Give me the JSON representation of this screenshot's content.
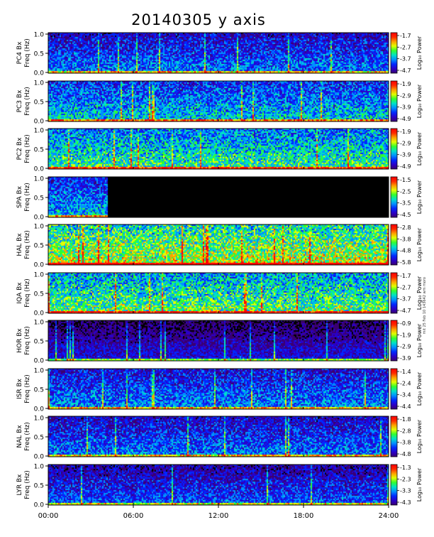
{
  "title": "20140305 y axis",
  "note": "mit 25 Feb 10 143642 wm moro",
  "colormap": [
    "#000000",
    "#3a0070",
    "#2a00c8",
    "#0028ff",
    "#0090ff",
    "#00e0c8",
    "#30ff30",
    "#e0ff00",
    "#ffa000",
    "#ff2800",
    "#ff0000"
  ],
  "chart_data": {
    "type": "heatmap",
    "x_tick_labels": [
      "00:00",
      "06:00",
      "12:00",
      "18:00",
      "24:00"
    ],
    "x_ticks_hours": [
      0,
      6,
      12,
      18,
      24
    ],
    "xlim_hours": [
      0,
      24
    ],
    "y_tick_labels": [
      "0.0",
      "0.5",
      "1.0"
    ],
    "ylim": [
      0,
      1.0
    ],
    "colorbar_label": "Log₁₀ Power",
    "panels": [
      {
        "station": "PC4",
        "label": "PC4 Bx",
        "freq_label": "Freq (Hz)",
        "cbar_ticks": [
          "-1.7",
          "-2.7",
          "-3.7",
          "-4.7"
        ],
        "intensity": 0.22,
        "noise": 0.3
      },
      {
        "station": "PC3",
        "label": "PC3 Bx",
        "freq_label": "Freq (Hz)",
        "cbar_ticks": [
          "-1.9",
          "-2.9",
          "-3.9",
          "-4.9"
        ],
        "intensity": 0.3,
        "noise": 0.32
      },
      {
        "station": "PC2",
        "label": "PC2 Bx",
        "freq_label": "Freq (Hz)",
        "cbar_ticks": [
          "-1.9",
          "-2.9",
          "-3.9",
          "-4.9"
        ],
        "intensity": 0.38,
        "noise": 0.34
      },
      {
        "station": "SPA",
        "label": "SPA Bx",
        "freq_label": "Freq (Hz)",
        "cbar_ticks": [
          "-1.5",
          "-2.5",
          "-3.5",
          "-4.5"
        ],
        "intensity": 0.28,
        "noise": 0.3,
        "data_until_hours": 4.1
      },
      {
        "station": "HAL",
        "label": "HAL Bx",
        "freq_label": "Freq (Hz)",
        "cbar_ticks": [
          "-2.8",
          "-3.8",
          "-4.8",
          "-5.8"
        ],
        "intensity": 0.5,
        "noise": 0.38
      },
      {
        "station": "IQA",
        "label": "IQA Bx",
        "freq_label": "Freq (Hz)",
        "cbar_ticks": [
          "-1.7",
          "-2.7",
          "-3.7",
          "-4.7"
        ],
        "intensity": 0.42,
        "noise": 0.36
      },
      {
        "station": "HOR",
        "label": "HOR Bx",
        "freq_label": "Freq (Hz)",
        "cbar_ticks": [
          "-0.9",
          "-1.9",
          "-2.9",
          "-3.9"
        ],
        "intensity": 0.1,
        "noise": 0.22
      },
      {
        "station": "ISR",
        "label": "ISR Bx",
        "freq_label": "Freq (Hz)",
        "cbar_ticks": [
          "-1.4",
          "-2.4",
          "-3.4",
          "-4.4"
        ],
        "intensity": 0.24,
        "noise": 0.3
      },
      {
        "station": "NAL",
        "label": "NAL Bx",
        "freq_label": "Freq (Hz)",
        "cbar_ticks": [
          "-1.8",
          "-2.8",
          "-3.8",
          "-4.8"
        ],
        "intensity": 0.22,
        "noise": 0.3
      },
      {
        "station": "LYR",
        "label": "LYR Bx",
        "freq_label": "Freq (Hz)",
        "cbar_ticks": [
          "-1.3",
          "-2.3",
          "-3.3",
          "-4.3"
        ],
        "intensity": 0.18,
        "noise": 0.28
      }
    ]
  }
}
